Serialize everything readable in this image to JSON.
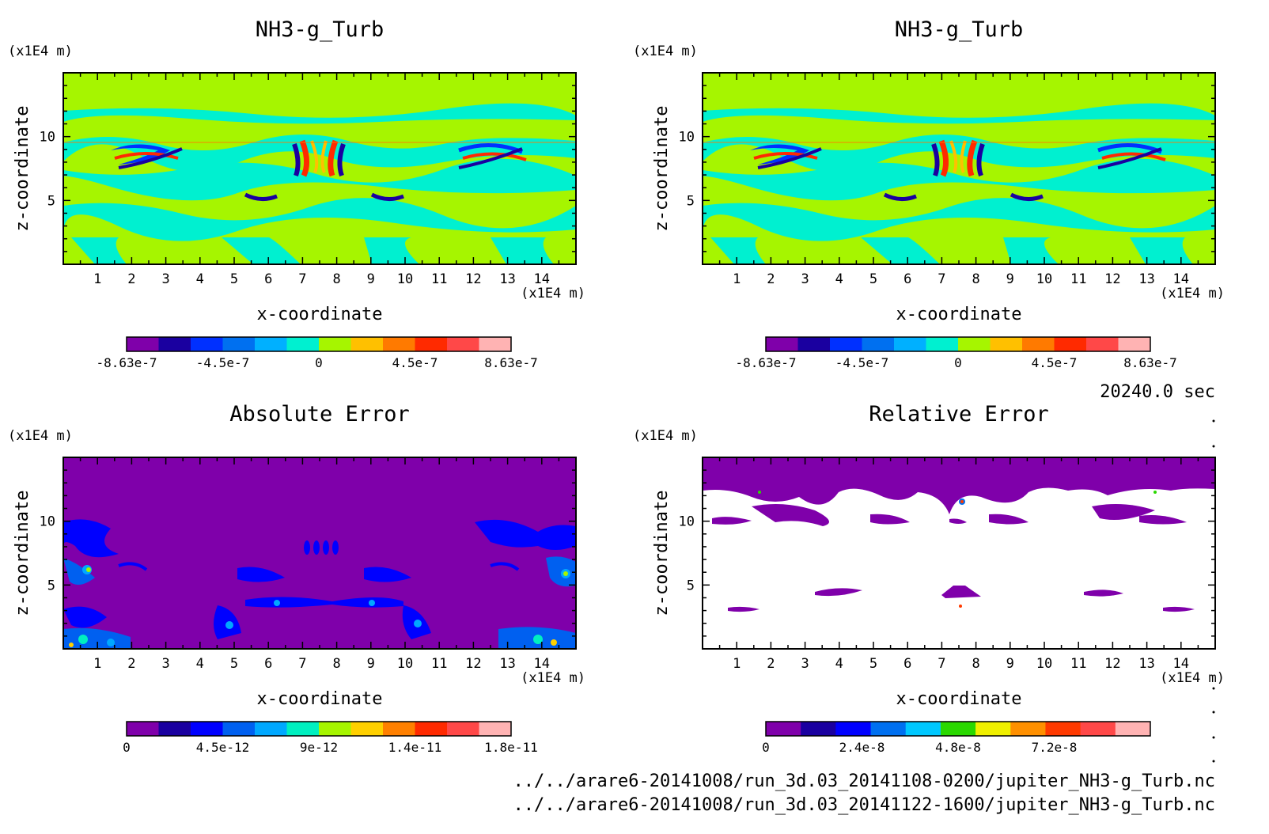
{
  "time_label": "20240.0 sec",
  "file_paths": [
    "../../arare6-20141008/run_3d.03_20141108-0200/jupiter_NH3-g_Turb.nc",
    "../../arare6-20141008/run_3d.03_20141122-1600/jupiter_NH3-g_Turb.nc"
  ],
  "colors": {
    "background_fill": "#a6f500",
    "error_fill": "#7f00aa"
  },
  "chart_data": [
    {
      "type": "heatmap",
      "title": "NH3-g_Turb",
      "xlabel": "x-coordinate",
      "ylabel": "z-coordinate",
      "x_unit": "(x1E4 m)",
      "y_unit": "(x1E4 m)",
      "xlim": [
        0,
        15
      ],
      "ylim": [
        0,
        15
      ],
      "x_ticks": [
        "1",
        "2",
        "3",
        "4",
        "5",
        "6",
        "7",
        "8",
        "9",
        "10",
        "11",
        "12",
        "13",
        "14"
      ],
      "y_ticks": [
        "5",
        "10"
      ],
      "colorbar": {
        "colors": [
          "#7f00aa",
          "#1a00a0",
          "#0030ff",
          "#0070f0",
          "#00b0ff",
          "#00f0d0",
          "#a6f500",
          "#ffc000",
          "#ff7a00",
          "#ff2a00",
          "#ff4848",
          "#ffb3b3"
        ],
        "labels": [
          "-8.63e-7",
          "-4.5e-7",
          "0",
          "4.5e-7",
          "8.63e-7"
        ],
        "label_positions": [
          0,
          0.25,
          0.5,
          0.75,
          1.0
        ]
      }
    },
    {
      "type": "heatmap",
      "title": "NH3-g_Turb",
      "xlabel": "x-coordinate",
      "ylabel": "z-coordinate",
      "x_unit": "(x1E4 m)",
      "y_unit": "(x1E4 m)",
      "xlim": [
        0,
        15
      ],
      "ylim": [
        0,
        15
      ],
      "x_ticks": [
        "1",
        "2",
        "3",
        "4",
        "5",
        "6",
        "7",
        "8",
        "9",
        "10",
        "11",
        "12",
        "13",
        "14"
      ],
      "y_ticks": [
        "5",
        "10"
      ],
      "colorbar": {
        "colors": [
          "#7f00aa",
          "#1a00a0",
          "#0030ff",
          "#0070f0",
          "#00b0ff",
          "#00f0d0",
          "#a6f500",
          "#ffc000",
          "#ff7a00",
          "#ff2a00",
          "#ff4848",
          "#ffb3b3"
        ],
        "labels": [
          "-8.63e-7",
          "-4.5e-7",
          "0",
          "4.5e-7",
          "8.63e-7"
        ],
        "label_positions": [
          0,
          0.25,
          0.5,
          0.75,
          1.0
        ]
      }
    },
    {
      "type": "heatmap",
      "title": "Absolute Error",
      "xlabel": "x-coordinate",
      "ylabel": "z-coordinate",
      "x_unit": "(x1E4 m)",
      "y_unit": "(x1E4 m)",
      "xlim": [
        0,
        15
      ],
      "ylim": [
        0,
        15
      ],
      "x_ticks": [
        "1",
        "2",
        "3",
        "4",
        "5",
        "6",
        "7",
        "8",
        "9",
        "10",
        "11",
        "12",
        "13",
        "14"
      ],
      "y_ticks": [
        "5",
        "10"
      ],
      "colorbar": {
        "colors": [
          "#7f00aa",
          "#1a00a0",
          "#0000ff",
          "#0060f0",
          "#00a8ff",
          "#00f0c0",
          "#a6f500",
          "#ffd000",
          "#ff8000",
          "#ff2a00",
          "#ff4848",
          "#ffb3b3"
        ],
        "labels": [
          "0",
          "4.5e-12",
          "9e-12",
          "1.4e-11",
          "1.8e-11"
        ],
        "label_positions": [
          0,
          0.25,
          0.5,
          0.75,
          1.0
        ]
      }
    },
    {
      "type": "heatmap",
      "title": "Relative Error",
      "xlabel": "x-coordinate",
      "ylabel": "z-coordinate",
      "x_unit": "(x1E4 m)",
      "y_unit": "(x1E4 m)",
      "xlim": [
        0,
        15
      ],
      "ylim": [
        0,
        15
      ],
      "x_ticks": [
        "1",
        "2",
        "3",
        "4",
        "5",
        "6",
        "7",
        "8",
        "9",
        "10",
        "11",
        "12",
        "13",
        "14"
      ],
      "y_ticks": [
        "5",
        "10"
      ],
      "colorbar": {
        "colors": [
          "#7f00aa",
          "#1a00a0",
          "#0000ff",
          "#0070f0",
          "#00c8ff",
          "#2ad800",
          "#f0f000",
          "#ff9000",
          "#ff3a00",
          "#ff4848",
          "#ffb3b3"
        ],
        "labels": [
          "0",
          "2.4e-8",
          "4.8e-8",
          "7.2e-8"
        ],
        "label_positions": [
          0,
          0.25,
          0.5,
          0.75
        ]
      }
    }
  ]
}
